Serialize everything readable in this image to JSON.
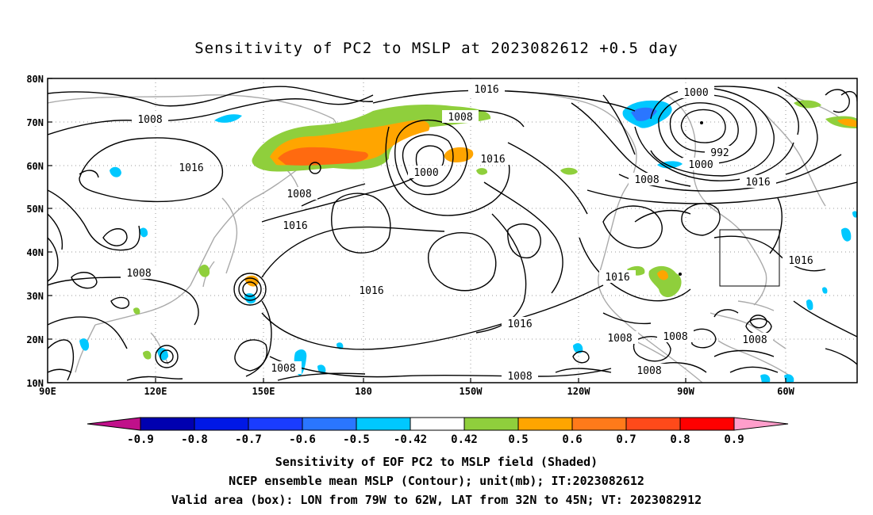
{
  "title": "Sensitivity of PC2 to MSLP at 2023082612 +0.5 day",
  "map": {
    "lon_labels": [
      "90E",
      "120E",
      "150E",
      "180",
      "150W",
      "120W",
      "90W",
      "60W"
    ],
    "lat_labels": [
      "80N",
      "70N",
      "60N",
      "50N",
      "40N",
      "30N",
      "20N",
      "10N"
    ],
    "contour_labels": [
      "1016",
      "1008",
      "1000",
      "992",
      "1000",
      "1008",
      "1016",
      "1008",
      "1016",
      "1008",
      "1016",
      "1000",
      "1016",
      "1016",
      "1008",
      "1016",
      "1016",
      "1008",
      "1008",
      "1008",
      "1008",
      "1008",
      "1016",
      "1008",
      "1008"
    ],
    "box_label": "Valid area"
  },
  "colorbar": {
    "labels": [
      "-0.9",
      "-0.8",
      "-0.7",
      "-0.6",
      "-0.5",
      "-0.42",
      "0.42",
      "0.5",
      "0.6",
      "0.7",
      "0.8",
      "0.9"
    ],
    "colors": [
      "#0000b0",
      "#0018e6",
      "#1a3cff",
      "#2a76ff",
      "#00c8ff",
      "#ffffff",
      "#8fcf3c",
      "#ffa500",
      "#ff7a1a",
      "#ff4a1a",
      "#ff0000"
    ],
    "under_color": "#c0108a",
    "over_color": "#ff9ecb"
  },
  "shading_colors": {
    "green": "#8fcf3c",
    "orange": "#ff8c1a",
    "darkorange": "#ff6a10",
    "cyan": "#00c8ff",
    "blue": "#2a76ff"
  },
  "footer": {
    "line1": "Sensitivity of EOF PC2 to MSLP field (Shaded)",
    "line2": "NCEP ensemble mean MSLP (Contour); unit(mb); IT:2023082612",
    "line3": "Valid area (box): LON from 79W to 62W, LAT from 32N to 45N; VT: 2023082912"
  }
}
